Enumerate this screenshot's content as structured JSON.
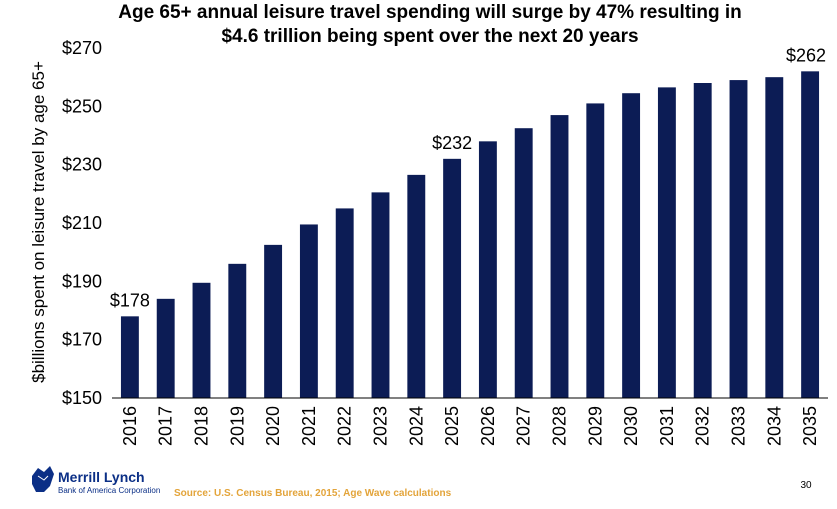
{
  "colors": {
    "bar": "#0c1c55",
    "axis": "#000000",
    "brand": "#0b2f86",
    "source": "#e3a43a"
  },
  "footer": {
    "logo_name": "Merrill Lynch",
    "logo_sub": "Bank of America Corporation",
    "logo_icon": "bull-icon",
    "source": "Source: U.S. Census Bureau, 2015; Age Wave calculations",
    "page_number": "30"
  },
  "chart_data": {
    "type": "bar",
    "title_lines": [
      "Age 65+ annual leisure travel spending will surge by 47% resulting in",
      "$4.6 trillion being spent over the next 20 years"
    ],
    "ylabel": "$billions spent on leisure travel by age 65+",
    "xlabel": "",
    "ylim": [
      150,
      270
    ],
    "yticks": [
      150,
      170,
      190,
      210,
      230,
      250,
      270
    ],
    "ytick_labels": [
      "$150",
      "$170",
      "$190",
      "$210",
      "$230",
      "$250",
      "$270"
    ],
    "grid": false,
    "categories": [
      "2016",
      "2017",
      "2018",
      "2019",
      "2020",
      "2021",
      "2022",
      "2023",
      "2024",
      "2025",
      "2026",
      "2027",
      "2028",
      "2029",
      "2030",
      "2031",
      "2032",
      "2033",
      "2034",
      "2035"
    ],
    "values": [
      178,
      184,
      189.5,
      196,
      202.5,
      209.5,
      215,
      220.5,
      226.5,
      232,
      238,
      242.5,
      247,
      251,
      254.5,
      256.5,
      258,
      259,
      260,
      262
    ],
    "annotations": [
      {
        "category": "2016",
        "text": "$178"
      },
      {
        "category": "2025",
        "text": "$232"
      },
      {
        "category": "2035",
        "text": "$262"
      }
    ]
  }
}
